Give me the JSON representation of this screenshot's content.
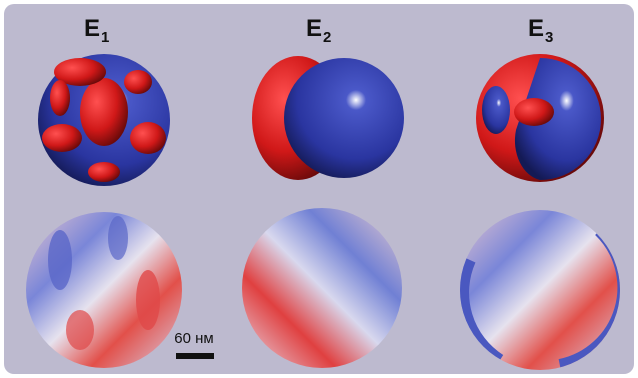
{
  "panels": [
    {
      "label": "E",
      "subscript": "1"
    },
    {
      "label": "E",
      "subscript": "2"
    },
    {
      "label": "E",
      "subscript": "3"
    }
  ],
  "scale_bar": "60 нм"
}
